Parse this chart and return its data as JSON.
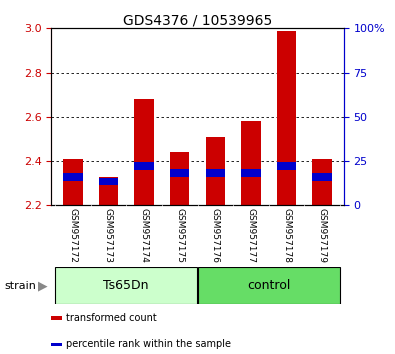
{
  "title": "GDS4376 / 10539965",
  "samples": [
    "GSM957172",
    "GSM957173",
    "GSM957174",
    "GSM957175",
    "GSM957176",
    "GSM957177",
    "GSM957178",
    "GSM957179"
  ],
  "red_values": [
    2.41,
    2.33,
    2.68,
    2.44,
    2.51,
    2.58,
    2.99,
    2.41
  ],
  "blue_values": [
    2.31,
    2.29,
    2.36,
    2.33,
    2.33,
    2.33,
    2.36,
    2.31
  ],
  "y_min": 2.2,
  "y_max": 3.0,
  "y_ticks": [
    2.2,
    2.4,
    2.6,
    2.8,
    3.0
  ],
  "right_y_ticks_pct": [
    0,
    25,
    50,
    75,
    100
  ],
  "right_y_labels": [
    "0",
    "25",
    "50",
    "75",
    "100%"
  ],
  "groups": [
    {
      "label": "Ts65Dn",
      "start": 0,
      "end": 3,
      "color": "#ccffcc"
    },
    {
      "label": "control",
      "start": 4,
      "end": 7,
      "color": "#66dd66"
    }
  ],
  "bar_width": 0.55,
  "red_color": "#cc0000",
  "blue_color": "#0000cc",
  "title_fontsize": 10,
  "axis_color_left": "#cc0000",
  "axis_color_right": "#0000cc",
  "strain_label": "strain",
  "sample_label_gray": "#d8d8d8",
  "legend_items": [
    {
      "color": "#cc0000",
      "label": "transformed count"
    },
    {
      "color": "#0000cc",
      "label": "percentile rank within the sample"
    }
  ],
  "grid_ticks": [
    2.4,
    2.6,
    2.8
  ]
}
